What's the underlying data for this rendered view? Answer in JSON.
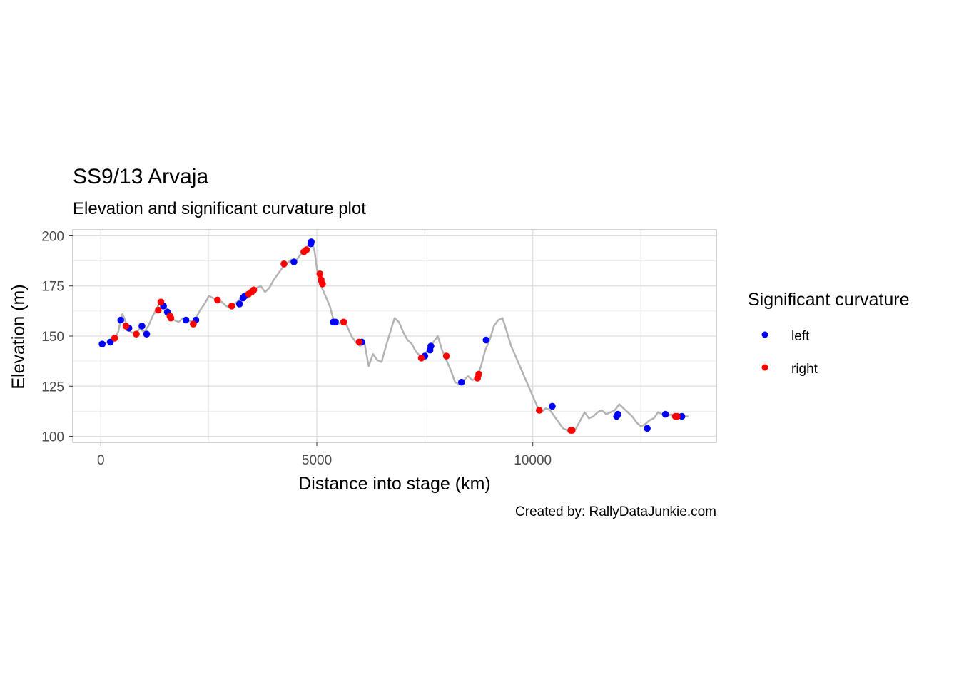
{
  "chart_data": {
    "type": "line",
    "title": "SS9/13 Arvaja",
    "subtitle": "Elevation and significant curvature plot",
    "xlabel": "Distance into stage (km)",
    "ylabel": "Elevation (m)",
    "caption": "Created by: RallyDataJunkie.com",
    "xlim": [
      -650,
      14250
    ],
    "ylim": [
      97,
      203
    ],
    "xticks": [
      0,
      5000,
      10000
    ],
    "yticks": [
      100,
      125,
      150,
      175,
      200
    ],
    "grid": true,
    "legend": {
      "title": "Significant curvature",
      "position": "right",
      "entries": [
        {
          "label": "left",
          "color": "#0000ff"
        },
        {
          "label": "right",
          "color": "#ff0000"
        }
      ]
    },
    "line_color": "#b3b3b3",
    "elevation_profile": {
      "x": [
        0,
        150,
        300,
        400,
        450,
        500,
        560,
        620,
        700,
        800,
        900,
        1000,
        1100,
        1200,
        1300,
        1400,
        1500,
        1550,
        1600,
        1700,
        1800,
        1900,
        2000,
        2100,
        2200,
        2300,
        2400,
        2500,
        2600,
        2700,
        2800,
        2900,
        3000,
        3100,
        3200,
        3300,
        3400,
        3500,
        3600,
        3700,
        3800,
        3900,
        4000,
        4100,
        4200,
        4300,
        4400,
        4500,
        4600,
        4700,
        4800,
        4850,
        4900,
        4950,
        5000,
        5050,
        5100,
        5200,
        5300,
        5400,
        5500,
        5600,
        5700,
        5800,
        5900,
        6000,
        6100,
        6200,
        6300,
        6400,
        6500,
        6600,
        6700,
        6800,
        6900,
        7000,
        7100,
        7200,
        7300,
        7400,
        7500,
        7600,
        7700,
        7800,
        7900,
        8000,
        8100,
        8200,
        8300,
        8400,
        8500,
        8600,
        8700,
        8800,
        8900,
        9000,
        9100,
        9200,
        9300,
        9400,
        9500,
        9600,
        9700,
        9800,
        9900,
        10000,
        10100,
        10200,
        10300,
        10400,
        10500,
        10600,
        10700,
        10800,
        10900,
        11000,
        11100,
        11200,
        11300,
        11400,
        11500,
        11600,
        11700,
        11800,
        11900,
        12000,
        12100,
        12200,
        12300,
        12400,
        12500,
        12600,
        12700,
        12800,
        12900,
        13000,
        13100,
        13200,
        13300,
        13400,
        13500,
        13600
      ],
      "y": [
        146,
        147,
        149,
        152,
        157,
        161,
        158,
        154,
        152,
        151,
        154,
        152,
        155,
        160,
        164,
        168,
        165,
        162,
        159,
        158,
        157,
        159,
        158,
        157,
        159,
        163,
        166,
        170,
        169,
        168,
        167,
        165,
        164,
        166,
        168,
        170,
        172,
        173,
        174,
        175,
        172,
        174,
        178,
        181,
        184,
        186,
        188,
        187,
        190,
        193,
        195,
        197,
        196,
        192,
        184,
        177,
        175,
        170,
        165,
        157,
        156,
        158,
        155,
        150,
        147,
        145,
        147,
        135,
        141,
        138,
        137,
        145,
        152,
        159,
        157,
        152,
        148,
        146,
        142,
        140,
        141,
        144,
        147,
        150,
        143,
        138,
        133,
        127,
        126,
        128,
        130,
        128,
        129,
        135,
        143,
        148,
        155,
        158,
        159,
        152,
        145,
        140,
        135,
        130,
        125,
        120,
        115,
        112,
        114,
        113,
        110,
        107,
        104,
        103,
        102,
        104,
        108,
        112,
        109,
        110,
        112,
        113,
        111,
        112,
        113,
        116,
        114,
        112,
        110,
        107,
        105,
        106,
        108,
        109,
        112,
        111,
        110,
        111,
        110,
        111,
        110,
        110
      ]
    },
    "series": [
      {
        "name": "left",
        "color": "#0000ff",
        "x": [
          30,
          220,
          460,
          650,
          950,
          1060,
          1450,
          1540,
          1970,
          2200,
          3210,
          3290,
          3330,
          4470,
          4860,
          4870,
          5380,
          5430,
          6040,
          7500,
          7620,
          7640,
          8350,
          8920,
          10450,
          11940,
          11970,
          12650,
          13070,
          13450
        ],
        "y": [
          146,
          147,
          158,
          154,
          155,
          151,
          165,
          162,
          158,
          158,
          166,
          169,
          170,
          187,
          196,
          197,
          157,
          157,
          147,
          140,
          143,
          145,
          127,
          148,
          115,
          110,
          111,
          104,
          111,
          110
        ]
      },
      {
        "name": "right",
        "color": "#ff0000",
        "x": [
          320,
          580,
          820,
          1330,
          1390,
          1600,
          1620,
          2140,
          2700,
          3030,
          3420,
          3490,
          3540,
          4240,
          4700,
          4760,
          5070,
          5100,
          5130,
          5620,
          5980,
          7420,
          8000,
          8720,
          8750,
          10150,
          10880,
          10910,
          13300,
          13340
        ],
        "y": [
          149,
          155,
          151,
          163,
          167,
          160,
          159,
          156,
          168,
          165,
          171,
          172,
          173,
          186,
          192,
          193,
          181,
          178,
          176,
          157,
          147,
          139,
          140,
          129,
          131,
          113,
          103,
          103,
          110,
          110
        ]
      }
    ]
  }
}
